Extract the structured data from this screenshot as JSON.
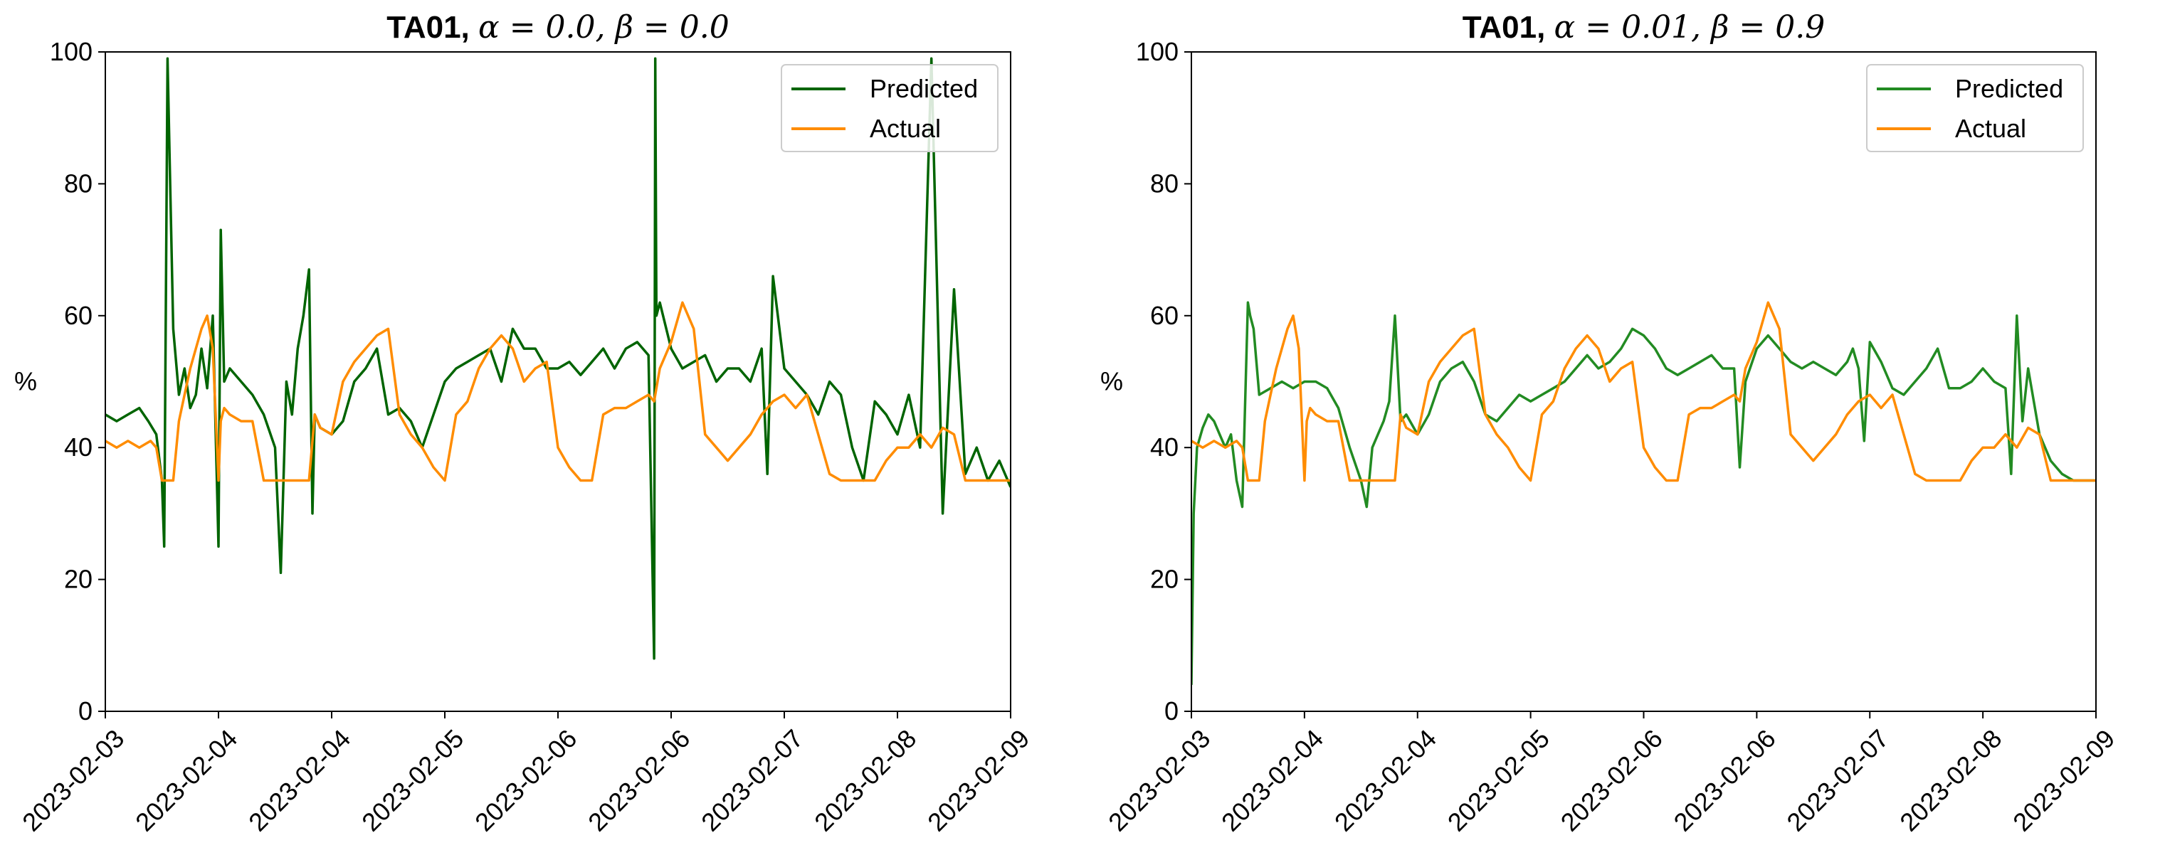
{
  "chart_data": [
    {
      "type": "line",
      "title_bold": "TA01,",
      "title_rest": "α = 0.0, β = 0.0",
      "xlabel": "",
      "ylabel": "%",
      "ylim": [
        0,
        100
      ],
      "yticks": [
        0,
        20,
        40,
        60,
        80,
        100
      ],
      "xlim": [
        "2023-02-03",
        "2023-02-09"
      ],
      "xtick_labels": [
        "2023-02-03",
        "2023-02-04",
        "2023-02-04",
        "2023-02-05",
        "2023-02-06",
        "2023-02-06",
        "2023-02-07",
        "2023-02-08",
        "2023-02-09"
      ],
      "grid": false,
      "legend": "top-right",
      "series": [
        {
          "name": "Predicted",
          "color": "#006400",
          "x_days": [
            0.0,
            0.1,
            0.2,
            0.3,
            0.38,
            0.45,
            0.5,
            0.52,
            0.55,
            0.6,
            0.65,
            0.7,
            0.75,
            0.8,
            0.85,
            0.9,
            0.95,
            1.0,
            1.02,
            1.05,
            1.1,
            1.2,
            1.3,
            1.4,
            1.5,
            1.55,
            1.6,
            1.65,
            1.7,
            1.75,
            1.8,
            1.83,
            1.85,
            1.9,
            2.0,
            2.1,
            2.2,
            2.3,
            2.4,
            2.5,
            2.6,
            2.7,
            2.8,
            2.9,
            3.0,
            3.1,
            3.2,
            3.3,
            3.4,
            3.5,
            3.6,
            3.7,
            3.8,
            3.9,
            4.0,
            4.1,
            4.2,
            4.3,
            4.4,
            4.5,
            4.6,
            4.7,
            4.8,
            4.85,
            4.86,
            4.87,
            4.9,
            5.0,
            5.1,
            5.2,
            5.3,
            5.4,
            5.5,
            5.6,
            5.7,
            5.8,
            5.85,
            5.9,
            6.0,
            6.1,
            6.2,
            6.3,
            6.4,
            6.5,
            6.6,
            6.7,
            6.8,
            6.9,
            7.0,
            7.1,
            7.2,
            7.3,
            7.4,
            7.5,
            7.6,
            7.7,
            7.8,
            7.9,
            8.0
          ],
          "values": [
            45,
            44,
            45,
            46,
            44,
            42,
            35,
            25,
            99,
            58,
            48,
            52,
            46,
            48,
            55,
            49,
            60,
            25,
            73,
            50,
            52,
            50,
            48,
            45,
            40,
            21,
            50,
            45,
            55,
            60,
            67,
            30,
            45,
            43,
            42,
            44,
            50,
            52,
            55,
            45,
            46,
            44,
            40,
            45,
            50,
            52,
            53,
            54,
            55,
            50,
            58,
            55,
            55,
            52,
            52,
            53,
            51,
            53,
            55,
            52,
            55,
            56,
            54,
            8,
            99,
            60,
            62,
            55,
            52,
            53,
            54,
            50,
            52,
            52,
            50,
            55,
            36,
            66,
            52,
            50,
            48,
            45,
            50,
            48,
            40,
            35,
            47,
            45,
            42,
            48,
            40,
            99,
            30,
            64,
            36,
            40,
            35,
            38,
            34
          ]
        },
        {
          "name": "Actual",
          "color": "#ff8c00",
          "x_days": [
            0.0,
            0.1,
            0.2,
            0.3,
            0.4,
            0.45,
            0.5,
            0.55,
            0.6,
            0.65,
            0.7,
            0.75,
            0.8,
            0.85,
            0.9,
            0.95,
            1.0,
            1.02,
            1.05,
            1.1,
            1.2,
            1.3,
            1.4,
            1.5,
            1.55,
            1.6,
            1.7,
            1.75,
            1.8,
            1.85,
            1.9,
            2.0,
            2.1,
            2.2,
            2.3,
            2.4,
            2.5,
            2.6,
            2.7,
            2.8,
            2.9,
            3.0,
            3.1,
            3.2,
            3.3,
            3.4,
            3.5,
            3.6,
            3.7,
            3.8,
            3.9,
            4.0,
            4.1,
            4.2,
            4.3,
            4.4,
            4.5,
            4.6,
            4.7,
            4.8,
            4.85,
            4.9,
            5.0,
            5.1,
            5.2,
            5.3,
            5.4,
            5.5,
            5.6,
            5.7,
            5.8,
            5.85,
            5.9,
            6.0,
            6.1,
            6.2,
            6.3,
            6.4,
            6.5,
            6.6,
            6.7,
            6.8,
            6.9,
            7.0,
            7.1,
            7.2,
            7.3,
            7.4,
            7.5,
            7.6,
            7.7,
            7.8,
            7.9,
            8.0
          ],
          "values": [
            41,
            40,
            41,
            40,
            41,
            40,
            35,
            35,
            35,
            44,
            48,
            52,
            55,
            58,
            60,
            55,
            35,
            44,
            46,
            45,
            44,
            44,
            35,
            35,
            35,
            35,
            35,
            35,
            35,
            45,
            43,
            42,
            50,
            53,
            55,
            57,
            58,
            45,
            42,
            40,
            37,
            35,
            45,
            47,
            52,
            55,
            57,
            55,
            50,
            52,
            53,
            40,
            37,
            35,
            35,
            45,
            46,
            46,
            47,
            48,
            47,
            52,
            56,
            62,
            58,
            42,
            40,
            38,
            40,
            42,
            45,
            46,
            47,
            48,
            46,
            48,
            42,
            36,
            35,
            35,
            35,
            35,
            38,
            40,
            40,
            42,
            40,
            43,
            42,
            35,
            35,
            35,
            35,
            35
          ]
        }
      ]
    },
    {
      "type": "line",
      "title_bold": "TA01,",
      "title_rest": "α = 0.01, β = 0.9",
      "xlabel": "",
      "ylabel": "%",
      "ylim": [
        0,
        100
      ],
      "yticks": [
        0,
        20,
        40,
        60,
        80,
        100
      ],
      "xlim": [
        "2023-02-03",
        "2023-02-09"
      ],
      "xtick_labels": [
        "2023-02-03",
        "2023-02-04",
        "2023-02-04",
        "2023-02-05",
        "2023-02-06",
        "2023-02-06",
        "2023-02-07",
        "2023-02-08",
        "2023-02-09"
      ],
      "grid": false,
      "legend": "top-right",
      "series": [
        {
          "name": "Predicted",
          "color": "#228b22",
          "x_days": [
            0.0,
            0.02,
            0.05,
            0.1,
            0.15,
            0.2,
            0.25,
            0.3,
            0.35,
            0.4,
            0.45,
            0.5,
            0.52,
            0.55,
            0.6,
            0.7,
            0.8,
            0.9,
            1.0,
            1.1,
            1.2,
            1.3,
            1.4,
            1.5,
            1.55,
            1.6,
            1.7,
            1.75,
            1.8,
            1.85,
            1.9,
            2.0,
            2.1,
            2.2,
            2.3,
            2.4,
            2.5,
            2.6,
            2.7,
            2.8,
            2.9,
            3.0,
            3.1,
            3.2,
            3.3,
            3.4,
            3.5,
            3.6,
            3.7,
            3.8,
            3.9,
            4.0,
            4.1,
            4.2,
            4.3,
            4.4,
            4.5,
            4.6,
            4.7,
            4.8,
            4.85,
            4.9,
            5.0,
            5.1,
            5.2,
            5.3,
            5.4,
            5.5,
            5.6,
            5.7,
            5.8,
            5.85,
            5.9,
            5.95,
            6.0,
            6.1,
            6.2,
            6.3,
            6.4,
            6.5,
            6.6,
            6.7,
            6.8,
            6.9,
            7.0,
            7.1,
            7.2,
            7.25,
            7.3,
            7.35,
            7.4,
            7.5,
            7.6,
            7.7,
            7.8,
            7.9,
            8.0
          ],
          "values": [
            4,
            30,
            40,
            43,
            45,
            44,
            42,
            40,
            42,
            35,
            31,
            62,
            60,
            58,
            48,
            49,
            50,
            49,
            50,
            50,
            49,
            46,
            40,
            35,
            31,
            40,
            44,
            47,
            60,
            44,
            45,
            42,
            45,
            50,
            52,
            53,
            50,
            45,
            44,
            46,
            48,
            47,
            48,
            49,
            50,
            52,
            54,
            52,
            53,
            55,
            58,
            57,
            55,
            52,
            51,
            52,
            53,
            54,
            52,
            52,
            37,
            50,
            55,
            57,
            55,
            53,
            52,
            53,
            52,
            51,
            53,
            55,
            52,
            41,
            56,
            53,
            49,
            48,
            50,
            52,
            55,
            49,
            49,
            50,
            52,
            50,
            49,
            36,
            60,
            44,
            52,
            42,
            38,
            36,
            35,
            35,
            35
          ]
        },
        {
          "name": "Actual",
          "color": "#ff8c00",
          "x_days": [
            0.0,
            0.1,
            0.2,
            0.3,
            0.4,
            0.45,
            0.5,
            0.55,
            0.6,
            0.65,
            0.7,
            0.75,
            0.8,
            0.85,
            0.9,
            0.95,
            1.0,
            1.02,
            1.05,
            1.1,
            1.2,
            1.3,
            1.4,
            1.5,
            1.55,
            1.6,
            1.7,
            1.75,
            1.8,
            1.85,
            1.9,
            2.0,
            2.1,
            2.2,
            2.3,
            2.4,
            2.5,
            2.6,
            2.7,
            2.8,
            2.9,
            3.0,
            3.1,
            3.2,
            3.3,
            3.4,
            3.5,
            3.6,
            3.7,
            3.8,
            3.9,
            4.0,
            4.1,
            4.2,
            4.3,
            4.4,
            4.5,
            4.6,
            4.7,
            4.8,
            4.85,
            4.9,
            5.0,
            5.1,
            5.2,
            5.3,
            5.4,
            5.5,
            5.6,
            5.7,
            5.8,
            5.85,
            5.9,
            6.0,
            6.1,
            6.2,
            6.3,
            6.4,
            6.5,
            6.6,
            6.7,
            6.8,
            6.9,
            7.0,
            7.1,
            7.2,
            7.3,
            7.4,
            7.5,
            7.6,
            7.7,
            7.8,
            7.9,
            8.0
          ],
          "values": [
            41,
            40,
            41,
            40,
            41,
            40,
            35,
            35,
            35,
            44,
            48,
            52,
            55,
            58,
            60,
            55,
            35,
            44,
            46,
            45,
            44,
            44,
            35,
            35,
            35,
            35,
            35,
            35,
            35,
            45,
            43,
            42,
            50,
            53,
            55,
            57,
            58,
            45,
            42,
            40,
            37,
            35,
            45,
            47,
            52,
            55,
            57,
            55,
            50,
            52,
            53,
            40,
            37,
            35,
            35,
            45,
            46,
            46,
            47,
            48,
            47,
            52,
            56,
            62,
            58,
            42,
            40,
            38,
            40,
            42,
            45,
            46,
            47,
            48,
            46,
            48,
            42,
            36,
            35,
            35,
            35,
            35,
            38,
            40,
            40,
            42,
            40,
            43,
            42,
            35,
            35,
            35,
            35,
            35
          ]
        }
      ]
    }
  ]
}
